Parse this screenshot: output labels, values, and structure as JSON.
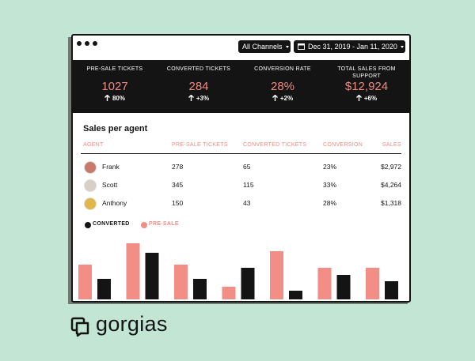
{
  "header": {
    "channel_filter": "All Channels",
    "date_range": "Dec 31, 2019 - Jan 11, 2020"
  },
  "stats": [
    {
      "label": "PRE-SALE TICKETS",
      "value": "1027",
      "change": "80%"
    },
    {
      "label": "CONVERTED TICKETS",
      "value": "284",
      "change": "+3%"
    },
    {
      "label": "CONVERSION RATE",
      "value": "28%",
      "change": "+2%"
    },
    {
      "label": "TOTAL SALES FROM SUPPORT",
      "value": "$12,924",
      "change": "+6%"
    }
  ],
  "table": {
    "title": "Sales per agent",
    "columns": [
      "AGENT",
      "PRE-SALE TICKETS",
      "CONVERTED TICKETS",
      "CONVERSION",
      "SALES"
    ],
    "rows": [
      [
        "Frank",
        "278",
        "65",
        "23%",
        "$2,972"
      ],
      [
        "Scott",
        "345",
        "115",
        "33%",
        "$4,264"
      ],
      [
        "Anthony",
        "150",
        "43",
        "28%",
        "$1,318"
      ]
    ]
  },
  "chart_data": {
    "type": "bar",
    "categories": [
      null,
      null,
      null,
      null,
      null,
      null,
      null
    ],
    "series": [
      {
        "name": "PRE-SALE",
        "color": "#f28e85",
        "values": [
          44,
          71,
          44,
          16,
          61,
          40,
          40
        ]
      },
      {
        "name": "CONVERTED",
        "color": "#141414",
        "values": [
          26,
          59,
          26,
          40,
          11,
          31,
          23
        ]
      }
    ],
    "legend_order": [
      "CONVERTED",
      "PRE-SALE"
    ],
    "ylim": [
      0,
      80
    ]
  },
  "brand": "gorgias"
}
